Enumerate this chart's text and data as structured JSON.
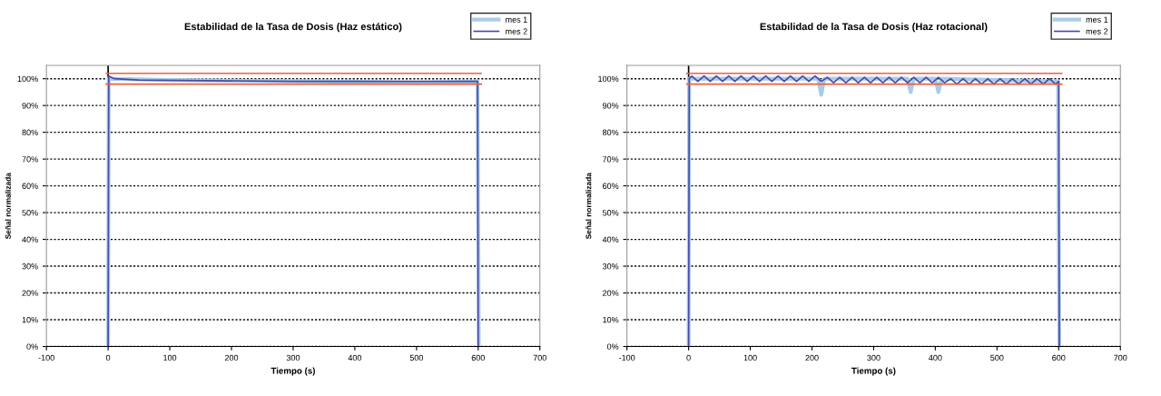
{
  "chart_data": [
    {
      "type": "line",
      "title": "Estabilidad de la Tasa de Dosis (Haz estático)",
      "xlabel": "Tiempo (s)",
      "ylabel": "Señal normalizada",
      "xlim": [
        -100,
        700
      ],
      "xticks": [
        -100,
        0,
        100,
        200,
        300,
        400,
        500,
        600,
        700
      ],
      "ylim": [
        0,
        105
      ],
      "yticks": [
        {
          "value": 0,
          "label": "0%"
        },
        {
          "value": 10,
          "label": "10%"
        },
        {
          "value": 20,
          "label": "20%"
        },
        {
          "value": 30,
          "label": "30%"
        },
        {
          "value": 40,
          "label": "40%"
        },
        {
          "value": 50,
          "label": "50%"
        },
        {
          "value": 60,
          "label": "60%"
        },
        {
          "value": 70,
          "label": "70%"
        },
        {
          "value": 80,
          "label": "80%"
        },
        {
          "value": 90,
          "label": "90%"
        },
        {
          "value": 100,
          "label": "100%"
        }
      ],
      "grid": "y",
      "legend": "top right",
      "line_style": "solid",
      "marker": "none",
      "series": [
        {
          "name": "mes 1",
          "color": "#a8cce8",
          "x": [
            0,
            1,
            100,
            350,
            500,
            599,
            601
          ],
          "values": [
            0,
            100,
            99.5,
            99,
            98.5,
            99,
            0
          ]
        },
        {
          "name": "mes 2",
          "color": "#4a4aa8",
          "x": [
            0,
            1,
            10,
            50,
            300,
            599,
            600
          ],
          "values": [
            0,
            101,
            100,
            99.5,
            99,
            99,
            0
          ]
        },
        {
          "color": "#f06040",
          "x": [
            -3,
            605
          ],
          "values": [
            102,
            102
          ]
        },
        {
          "color": "#f06040",
          "x": [
            -3,
            605
          ],
          "values": [
            98,
            98
          ]
        }
      ]
    },
    {
      "type": "line",
      "title": "Estabilidad de la Tasa de Dosis (Haz rotacional)",
      "xlabel": "Tiempo (s)",
      "ylabel": "Señal normalizada",
      "xlim": [
        -100,
        700
      ],
      "xticks": [
        -100,
        0,
        100,
        200,
        300,
        400,
        500,
        600,
        700
      ],
      "ylim": [
        0,
        105
      ],
      "yticks": [
        {
          "value": 0,
          "label": "0%"
        },
        {
          "value": 10,
          "label": "10%"
        },
        {
          "value": 20,
          "label": "20%"
        },
        {
          "value": 30,
          "label": "30%"
        },
        {
          "value": 40,
          "label": "40%"
        },
        {
          "value": 50,
          "label": "50%"
        },
        {
          "value": 60,
          "label": "60%"
        },
        {
          "value": 70,
          "label": "70%"
        },
        {
          "value": 80,
          "label": "80%"
        },
        {
          "value": 90,
          "label": "90%"
        },
        {
          "value": 100,
          "label": "100%"
        }
      ],
      "grid": "y",
      "legend": "top right",
      "line_style": "solid",
      "marker": "none",
      "series": [
        {
          "name": "mes 1",
          "color": "#a8cce8",
          "x": [
            0,
            1,
            210,
            215,
            220,
            355,
            360,
            365,
            400,
            405,
            410,
            599,
            601
          ],
          "values": [
            0,
            100,
            100,
            94,
            100,
            100,
            95,
            100,
            100,
            95,
            100,
            99,
            0
          ]
        },
        {
          "name": "mes 2",
          "color": "#4a4aa8",
          "x": [
            0,
            1,
            5,
            15,
            25,
            35,
            45,
            55,
            65,
            75,
            85,
            95,
            105,
            115,
            125,
            135,
            145,
            155,
            165,
            175,
            185,
            195,
            205,
            215,
            225,
            235,
            245,
            255,
            265,
            275,
            285,
            295,
            305,
            315,
            325,
            335,
            345,
            355,
            365,
            375,
            385,
            395,
            405,
            415,
            425,
            435,
            445,
            455,
            465,
            475,
            485,
            495,
            505,
            515,
            525,
            535,
            545,
            555,
            565,
            575,
            585,
            595,
            600,
            601
          ],
          "values": [
            0,
            100,
            101,
            99,
            101,
            99,
            101,
            99,
            101,
            99,
            101,
            99,
            101,
            99,
            101,
            99,
            101,
            99,
            101,
            99,
            101,
            99,
            101,
            99,
            100.5,
            98.5,
            100.5,
            98.5,
            100.5,
            98.5,
            100.5,
            98.5,
            100.5,
            98.5,
            100.5,
            98.5,
            100.5,
            98.5,
            100.5,
            98.5,
            100.5,
            98.5,
            100.5,
            98.5,
            100,
            98,
            100,
            98,
            100,
            98,
            100,
            98,
            100,
            98,
            100,
            98,
            100,
            98,
            100,
            98,
            100,
            98,
            99,
            0
          ]
        },
        {
          "color": "#f06040",
          "x": [
            -3,
            605
          ],
          "values": [
            102,
            102
          ]
        },
        {
          "color": "#f06040",
          "x": [
            -3,
            605
          ],
          "values": [
            98,
            98
          ]
        }
      ]
    }
  ]
}
